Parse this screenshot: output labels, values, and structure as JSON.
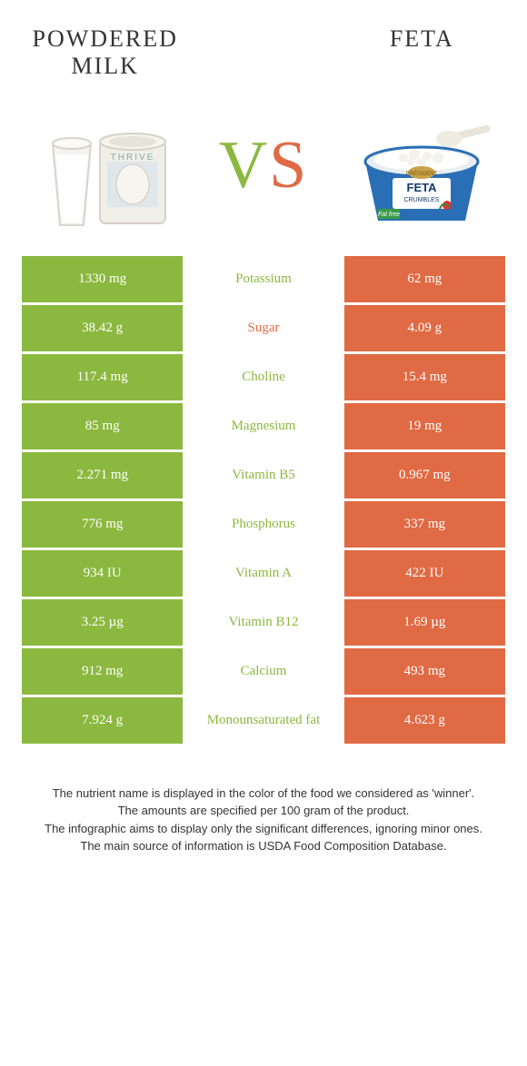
{
  "colors": {
    "left": "#8bb83f",
    "right": "#e06a44",
    "text": "#333333",
    "white": "#ffffff"
  },
  "header": {
    "leftTitle": "Powdered Milk",
    "rightTitle": "Feta",
    "vsV": "V",
    "vsS": "S"
  },
  "rows": [
    {
      "left": "1330 mg",
      "mid": "Potassium",
      "right": "62 mg",
      "winner": "left"
    },
    {
      "left": "38.42 g",
      "mid": "Sugar",
      "right": "4.09 g",
      "winner": "right"
    },
    {
      "left": "117.4 mg",
      "mid": "Choline",
      "right": "15.4 mg",
      "winner": "left"
    },
    {
      "left": "85 mg",
      "mid": "Magnesium",
      "right": "19 mg",
      "winner": "left"
    },
    {
      "left": "2.271 mg",
      "mid": "Vitamin B5",
      "right": "0.967 mg",
      "winner": "left"
    },
    {
      "left": "776 mg",
      "mid": "Phosphorus",
      "right": "337 mg",
      "winner": "left"
    },
    {
      "left": "934 IU",
      "mid": "Vitamin A",
      "right": "422 IU",
      "winner": "left"
    },
    {
      "left": "3.25 µg",
      "mid": "Vitamin B12",
      "right": "1.69 µg",
      "winner": "left"
    },
    {
      "left": "912 mg",
      "mid": "Calcium",
      "right": "493 mg",
      "winner": "left"
    },
    {
      "left": "7.924 g",
      "mid": "Monounsaturated fat",
      "right": "4.623 g",
      "winner": "left"
    }
  ],
  "footnotes": [
    "The nutrient name is displayed in the color of the food we considered as 'winner'.",
    "The amounts are specified per 100 gram of the product.",
    "The infographic aims to display only the significant differences, ignoring minor ones.",
    "The main source of information is USDA Food Composition Database."
  ]
}
